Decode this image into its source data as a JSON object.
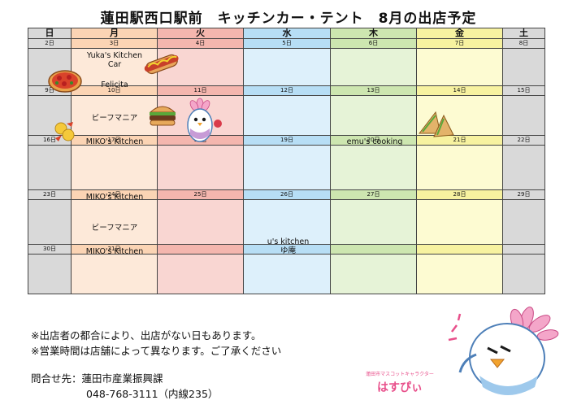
{
  "title": "蓮田駅西口駅前　キッチンカー・テント　8月の出店予定",
  "weekdays": [
    "日",
    "月",
    "火",
    "水",
    "木",
    "金",
    "土"
  ],
  "weeks": [
    [
      "2日",
      "3日",
      "4日",
      "5日",
      "6日",
      "7日",
      "8日"
    ],
    [
      "9日",
      "10日",
      "11日",
      "12日",
      "13日",
      "14日",
      "15日"
    ],
    [
      "16日",
      "17日",
      "18日",
      "19日",
      "20日",
      "21日",
      "22日"
    ],
    [
      "23日",
      "24日",
      "25日",
      "26日",
      "27日",
      "28日",
      "29日"
    ],
    [
      "30日",
      "31日",
      "",
      "",
      "",
      "",
      ""
    ]
  ],
  "entries": {
    "w1_mon_a": "Yuka's Kitchen",
    "w1_mon_b": "Car",
    "w1_mon_c": "Felicita",
    "w2_mon_a": "ビーフマニア",
    "w2_mon_b": "MIKO's Kitchen",
    "w2_thu": "emu's cooking",
    "w3_mon": "MIKO's Kitchen",
    "w4_mon_a": "ビーフマニア",
    "w4_mon_b": "MIKO's Kitchen",
    "w4_wed_a": "u's kitchen",
    "w4_wed_b": "ゆ庵"
  },
  "notes": [
    "※出店者の都合により、出店がない日もあります。",
    "※営業時間は店舗によって異なります。ご了承ください"
  ],
  "contact": {
    "line1": "問合せ先：蓮田市産業振興課",
    "line2": "048-768-3111（内線235）"
  },
  "mascot": {
    "label": "蓮田市マスコットキャラクター",
    "name": "はすぴぃ"
  }
}
